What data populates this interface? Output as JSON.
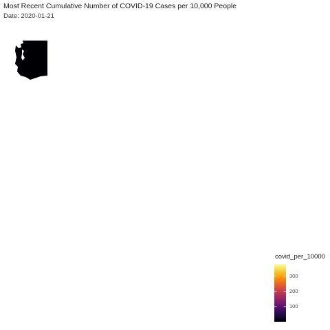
{
  "map": {
    "title": "Most Recent Cumulative Number of COVID-19 Cases per 10,000 People",
    "subtitle": "Date: 2020-01-21",
    "region_fill": "#000004",
    "background": "#ffffff"
  },
  "legend": {
    "title": "covid_per_10000",
    "ticks": [
      {
        "value": 100,
        "label": "100"
      },
      {
        "value": 200,
        "label": "200"
      },
      {
        "value": 300,
        "label": "300"
      }
    ],
    "range": [
      0,
      380
    ],
    "colormap": "inferno",
    "colors": [
      "#000004",
      "#1b0c41",
      "#4a0c6b",
      "#781c6d",
      "#a52c60",
      "#cf4446",
      "#ed6925",
      "#fb9b06",
      "#f7d13d",
      "#fcffa4"
    ]
  }
}
